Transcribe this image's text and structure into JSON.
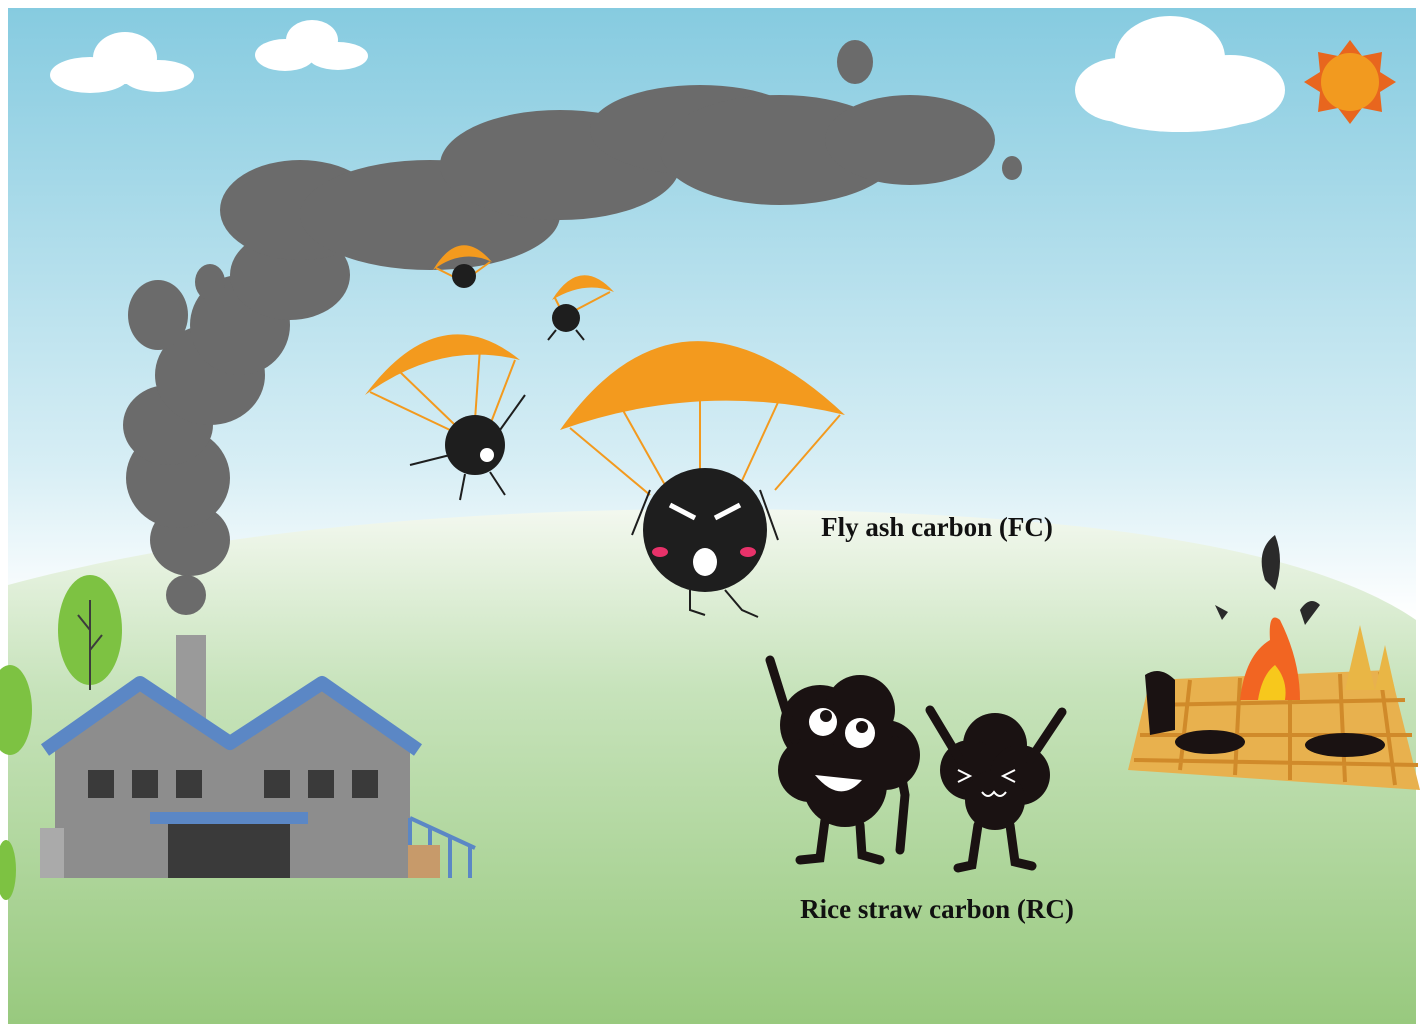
{
  "labels": {
    "fly_ash": "Fly ash carbon (FC)",
    "rice_straw": "Rice straw carbon (RC)"
  }
}
